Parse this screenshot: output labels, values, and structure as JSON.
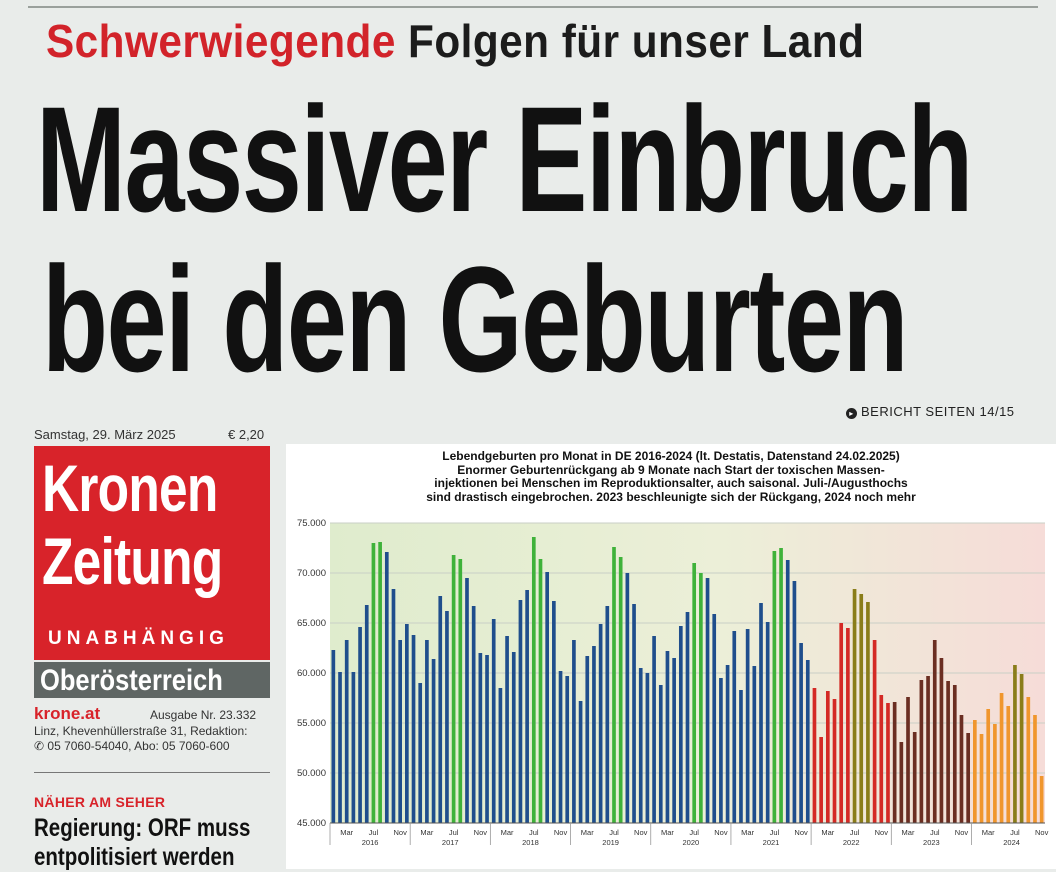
{
  "headline": {
    "kicker_red": "Schwerwiegende",
    "kicker_black": "Folgen für unser Land",
    "line1": "Massiver Einbruch",
    "line2": "bei den Geburten",
    "report_ref": "BERICHT SEITEN 14/15"
  },
  "masthead": {
    "date": "Samstag, 29. März 2025",
    "price": "€ 2,20",
    "logo_line1": "Kronen",
    "logo_line2": "Zeitung",
    "tagline": "UNABHÄNGIG",
    "region": "Oberösterreich",
    "website": "krone.at",
    "issue": "Ausgabe Nr. 23.332",
    "address": "Linz, Khevenhüllerstraße 31, Redaktion:",
    "phones": "05 7060-54040, Abo: 05 7060-600"
  },
  "teaser": {
    "section": "NÄHER AM SEHER",
    "line1": "Regierung: ORF muss",
    "line2": "entpolitisiert werden"
  },
  "colors": {
    "brand_red": "#d8232a",
    "bar_blue": "#1f4e8c",
    "bar_green": "#3fb23a",
    "bar_red": "#d42a25",
    "bar_orange": "#f0962d",
    "bar_brown": "#6b2e22",
    "bar_olive": "#8a7d1a"
  },
  "chart_data": {
    "type": "bar",
    "title_lines": [
      "Lebendgeburten pro Monat in DE 2016-2024 (lt. Destatis, Datenstand 24.02.2025)",
      "Enormer Geburtenrückgang ab 9 Monate nach Start der toxischen Massen-",
      "injektionen bei Menschen im Reproduktionsalter, auch saisonal. Juli-/Augusthochs",
      "sind drastisch eingebrochen. 2023 beschleunigte sich der Rückgang, 2024 noch mehr"
    ],
    "ylim": [
      45000,
      75000
    ],
    "y_ticks": [
      "45.000",
      "50.000",
      "55.000",
      "60.000",
      "65.000",
      "70.000",
      "75.000"
    ],
    "month_tick_labels": [
      "Mar",
      "Jul",
      "Nov"
    ],
    "years": [
      "2016",
      "2017",
      "2018",
      "2019",
      "2020",
      "2021",
      "2022",
      "2023",
      "2024"
    ],
    "series": [
      {
        "values": [
          62300,
          60100,
          63300,
          60100,
          64600,
          66800,
          73000,
          73100,
          72100,
          68400,
          63300,
          64900,
          63800,
          59000,
          63300,
          61400,
          67700,
          66200,
          71800,
          71400,
          69500,
          66700,
          62000,
          61800,
          65400,
          58500,
          63700,
          62100,
          67300,
          68300,
          73600,
          71400,
          70100,
          67200,
          60200,
          59700,
          63300,
          57200,
          61700,
          62700,
          64900,
          66700,
          72600,
          71600,
          70000,
          66900,
          60500,
          60000,
          63700,
          58800,
          62200,
          61500,
          64700,
          66100,
          71000,
          70000,
          69500,
          65900,
          59500,
          60800,
          64200,
          58300,
          64400,
          60700,
          67000,
          65100,
          72200,
          72500,
          71300,
          69200,
          63000,
          61300,
          58500,
          53600,
          58200,
          57400,
          65000,
          64500,
          68400,
          67900,
          67100,
          63300,
          57800,
          57000,
          57100,
          53100,
          57600,
          54100,
          59300,
          59700,
          63300,
          61500,
          59200,
          58800,
          55800,
          54000,
          55300,
          53900,
          56400,
          54900,
          58000,
          56700,
          60800,
          59900,
          57600,
          55800,
          49700
        ]
      }
    ]
  }
}
